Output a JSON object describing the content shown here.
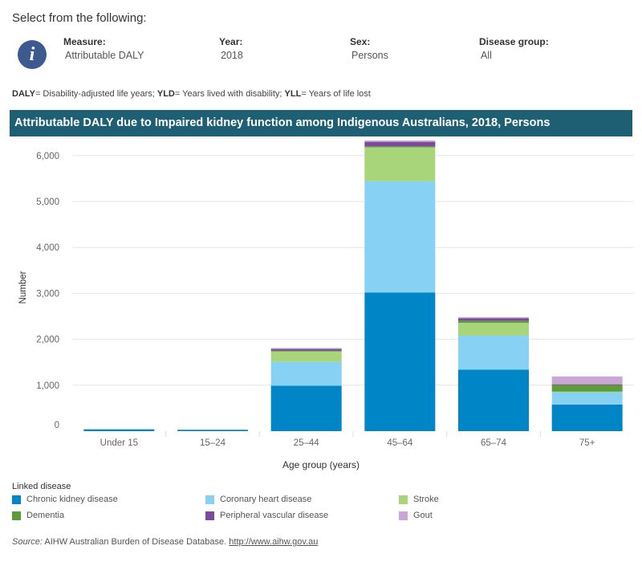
{
  "header": {
    "title": "Select from the following:"
  },
  "info_icon": {
    "glyph": "i",
    "icon": "info-icon"
  },
  "filters": {
    "measure": {
      "label": "Measure:",
      "value": "Attributable DALY"
    },
    "year": {
      "label": "Year:",
      "value": "2018"
    },
    "sex": {
      "label": "Sex:",
      "value": "Persons"
    },
    "disease_group": {
      "label": "Disease group:",
      "value": "All"
    }
  },
  "abbreviations": {
    "daly_key": "DALY",
    "daly_def": "= Disability-adjusted life years; ",
    "yld_key": "YLD",
    "yld_def": "= Years lived with disability; ",
    "yll_key": "YLL",
    "yll_def": "= Years of life lost"
  },
  "chart_header": "Attributable DALY due to Impaired kidney function among Indigenous Australians, 2018, Persons",
  "chart_data": {
    "type": "bar",
    "stacked": true,
    "title": "Attributable DALY due to Impaired kidney function among Indigenous Australians, 2018, Persons",
    "xlabel": "Age group (years)",
    "ylabel": "Number",
    "categories": [
      "Under 15",
      "15–24",
      "25–44",
      "45–64",
      "65–74",
      "75+"
    ],
    "ylim": [
      0,
      6300
    ],
    "yticks": [
      0,
      1000,
      2000,
      3000,
      4000,
      5000,
      6000
    ],
    "ytick_labels": [
      "0",
      "1,000",
      "2,000",
      "3,000",
      "4,000",
      "5,000",
      "6,000"
    ],
    "grid": true,
    "legend_title": "Linked disease",
    "series": [
      {
        "name": "Chronic kidney disease",
        "color": "#0085c6",
        "values": [
          40,
          30,
          990,
          3020,
          1340,
          580
        ]
      },
      {
        "name": "Coronary heart disease",
        "color": "#87d1f5",
        "values": [
          0,
          0,
          520,
          2420,
          740,
          270
        ]
      },
      {
        "name": "Stroke",
        "color": "#a8d57a",
        "values": [
          0,
          0,
          230,
          740,
          280,
          10
        ]
      },
      {
        "name": "Dementia",
        "color": "#5e9c3a",
        "values": [
          0,
          0,
          10,
          20,
          40,
          150
        ]
      },
      {
        "name": "Peripheral vascular disease",
        "color": "#7a4a9b",
        "values": [
          0,
          0,
          40,
          100,
          60,
          10
        ]
      },
      {
        "name": "Gout",
        "color": "#c9a6d6",
        "values": [
          0,
          0,
          20,
          30,
          20,
          170
        ]
      }
    ]
  },
  "source": {
    "label": "Source:",
    "text": " AIHW Australian Burden of Disease Database. ",
    "link": "http://www.aihw.gov.au"
  }
}
